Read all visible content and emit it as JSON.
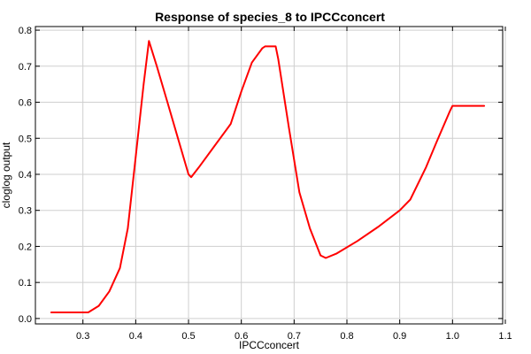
{
  "chart_data": {
    "type": "line",
    "title": "Response of species_8 to IPCCconcert",
    "xlabel": "IPCCconcert",
    "ylabel": "cloglog output",
    "xlim": [
      0.21,
      1.095
    ],
    "ylim": [
      -0.015,
      0.81
    ],
    "xticks": [
      0.3,
      0.4,
      0.5,
      0.6,
      0.7,
      0.8,
      0.9,
      1.0,
      1.1
    ],
    "xtick_labels": [
      "0.3",
      "0.4",
      "0.5",
      "0.6",
      "0.7",
      "0.8",
      "0.9",
      "1.0",
      "1.1"
    ],
    "yticks": [
      0.0,
      0.1,
      0.2,
      0.3,
      0.4,
      0.5,
      0.6,
      0.7,
      0.8
    ],
    "ytick_labels": [
      "0.0",
      "0.1",
      "0.2",
      "0.3",
      "0.4",
      "0.5",
      "0.6",
      "0.7",
      "0.8"
    ],
    "grid": true,
    "color": "#ff0000",
    "series": [
      {
        "x": [
          0.24,
          0.31,
          0.33,
          0.35,
          0.37,
          0.385,
          0.4,
          0.415,
          0.425,
          0.44,
          0.46,
          0.48,
          0.5,
          0.505,
          0.52,
          0.55,
          0.58,
          0.6,
          0.62,
          0.64,
          0.645,
          0.665,
          0.67,
          0.69,
          0.71,
          0.73,
          0.75,
          0.76,
          0.78,
          0.82,
          0.86,
          0.9,
          0.92,
          0.95,
          0.97,
          0.995,
          1.0,
          1.06
        ],
        "y": [
          0.017,
          0.017,
          0.035,
          0.075,
          0.14,
          0.25,
          0.45,
          0.65,
          0.77,
          0.7,
          0.6,
          0.5,
          0.4,
          0.392,
          0.42,
          0.48,
          0.54,
          0.63,
          0.71,
          0.75,
          0.755,
          0.755,
          0.72,
          0.53,
          0.35,
          0.25,
          0.175,
          0.168,
          0.18,
          0.215,
          0.255,
          0.3,
          0.33,
          0.42,
          0.49,
          0.575,
          0.59,
          0.59
        ]
      }
    ]
  }
}
